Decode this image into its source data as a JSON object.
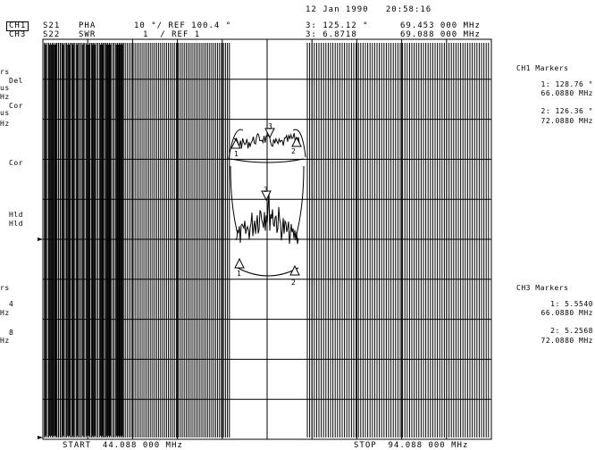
{
  "header": {
    "date_time": "12 Jan 1990   20:58:16",
    "ch1": {
      "channel": "CH1",
      "param": "S21",
      "format": "PHA",
      "scale": "10 °/ REF 100.4 °",
      "active_marker": "3: 125.12 °",
      "active_freq": "69.453 000 MHz"
    },
    "ch3": {
      "channel": "CH3",
      "param": "S22",
      "format": "SWR",
      "scale": "1  / REF 1",
      "active_marker": "3: 6.8718",
      "active_freq": "69.088 000 MHz"
    }
  },
  "left_softkeys": {
    "line1": "rs",
    "line2": "Del",
    "line3": "us",
    "line4": "Hz",
    "line5": "Cor",
    "line6": "us",
    "line7": "Hz",
    "line8": "Cor",
    "line9": "Hld",
    "line10": "Hld",
    "line11": "rs",
    "line12": "4",
    "line13": "Hz",
    "line14": "8",
    "line15": "Hz"
  },
  "right_panel": {
    "ch1_title": "CH1 Markers",
    "ch1_m1_val": "1: 128.76 °",
    "ch1_m1_freq": "66.0880 MHz",
    "ch1_m2_val": "2: 126.36 °",
    "ch1_m2_freq": "72.0880 MHz",
    "ch3_title": "CH3 Markers",
    "ch3_m1_val": "1: 5.5540",
    "ch3_m1_freq": "66.0880 MHz",
    "ch3_m2_val": "2: 5.2568",
    "ch3_m2_freq": "72.0880 MHz"
  },
  "footer": {
    "start": "START  44.088 000 MHz",
    "stop": "STOP  94.088 000 MHz"
  },
  "marker_labels": {
    "m1": "1",
    "m2": "2",
    "m3": "3"
  },
  "colors": {
    "trace": "#000000",
    "background": "#ffffff"
  }
}
